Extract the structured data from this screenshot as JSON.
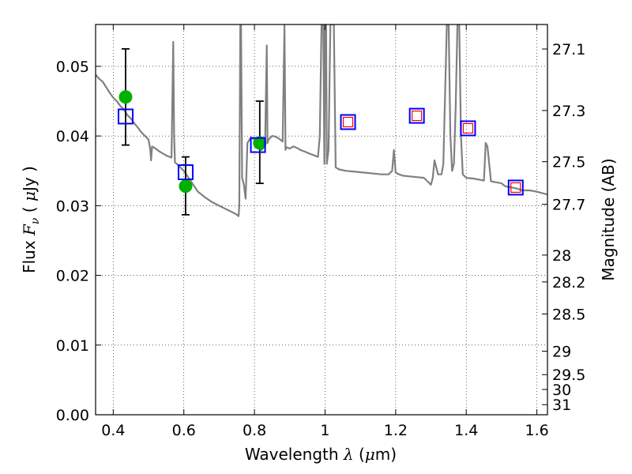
{
  "chart_data": {
    "type": "scatter",
    "title": "",
    "xlabel": "Wavelength",
    "xlabel_symbol": "λ",
    "xlabel_unit_open": "(",
    "xlabel_unit_mu": "μ",
    "xlabel_unit_rest": "m)",
    "ylabel": "Flux",
    "ylabel_symbol": "F",
    "ylabel_subscript": "ν",
    "ylabel_unit_open": "(",
    "ylabel_unit_mu": "μ",
    "ylabel_unit_rest": "Jy )",
    "y2label": "Magnitude (AB)",
    "xlim": [
      0.35,
      1.63
    ],
    "ylim": [
      0.0,
      0.056
    ],
    "x_ticks": [
      0.4,
      0.6,
      0.8,
      1.0,
      1.2,
      1.4,
      1.6
    ],
    "x_tick_labels": [
      "0.4",
      "0.6",
      "0.8",
      "1",
      "1.2",
      "1.4",
      "1.6"
    ],
    "y_ticks": [
      0.0,
      0.01,
      0.02,
      0.03,
      0.04,
      0.05
    ],
    "y_tick_labels": [
      "0.00",
      "0.01",
      "0.02",
      "0.03",
      "0.04",
      "0.05"
    ],
    "y2_ticks": [
      27.1,
      27.3,
      27.5,
      27.7,
      28,
      28.2,
      28.5,
      29,
      29.5,
      30,
      31
    ],
    "y2_tick_labels": [
      "27.1",
      "27.3",
      "27.5",
      "27.7",
      "28",
      "28.2",
      "28.5",
      "29",
      "29.5",
      "30",
      "31"
    ],
    "grid": true,
    "model_spectrum": {
      "color": "#808080",
      "x": [
        0.35,
        0.36,
        0.37,
        0.38,
        0.39,
        0.4,
        0.41,
        0.42,
        0.43,
        0.44,
        0.45,
        0.46,
        0.47,
        0.48,
        0.49,
        0.5,
        0.505,
        0.507,
        0.51,
        0.52,
        0.53,
        0.54,
        0.55,
        0.56,
        0.565,
        0.57,
        0.5725,
        0.575,
        0.58,
        0.59,
        0.6,
        0.62,
        0.64,
        0.66,
        0.68,
        0.7,
        0.72,
        0.74,
        0.75,
        0.755,
        0.757,
        0.76,
        0.762,
        0.765,
        0.77,
        0.775,
        0.78,
        0.79,
        0.8,
        0.81,
        0.82,
        0.83,
        0.835,
        0.837,
        0.84,
        0.85,
        0.86,
        0.87,
        0.88,
        0.885,
        0.888,
        0.89,
        0.9,
        0.91,
        0.92,
        0.93,
        0.94,
        0.95,
        0.96,
        0.97,
        0.98,
        0.985,
        0.99,
        0.995,
        0.998,
        1.0,
        1.003,
        1.005,
        1.01,
        1.015,
        1.02,
        1.025,
        1.03,
        1.04,
        1.06,
        1.08,
        1.1,
        1.12,
        1.14,
        1.16,
        1.18,
        1.19,
        1.195,
        1.2,
        1.205,
        1.21,
        1.22,
        1.24,
        1.26,
        1.28,
        1.29,
        1.3,
        1.305,
        1.31,
        1.32,
        1.33,
        1.335,
        1.34,
        1.345,
        1.35,
        1.355,
        1.36,
        1.365,
        1.37,
        1.375,
        1.38,
        1.385,
        1.39,
        1.4,
        1.42,
        1.44,
        1.45,
        1.455,
        1.46,
        1.47,
        1.48,
        1.49,
        1.5,
        1.51,
        1.52,
        1.53,
        1.54,
        1.56,
        1.58,
        1.6,
        1.63
      ],
      "y": [
        0.0488,
        0.0482,
        0.0478,
        0.047,
        0.0462,
        0.0455,
        0.045,
        0.0443,
        0.0438,
        0.043,
        0.0425,
        0.0418,
        0.0412,
        0.0405,
        0.04,
        0.0395,
        0.038,
        0.0365,
        0.0385,
        0.0382,
        0.0378,
        0.0375,
        0.0372,
        0.037,
        0.0369,
        0.0535,
        0.04,
        0.0362,
        0.036,
        0.0355,
        0.035,
        0.0335,
        0.032,
        0.0312,
        0.0305,
        0.03,
        0.0295,
        0.029,
        0.0287,
        0.0285,
        0.03,
        0.056,
        0.056,
        0.034,
        0.033,
        0.031,
        0.039,
        0.0398,
        0.0395,
        0.0385,
        0.038,
        0.0385,
        0.053,
        0.039,
        0.0395,
        0.04,
        0.0399,
        0.0396,
        0.0392,
        0.056,
        0.038,
        0.0384,
        0.0382,
        0.0385,
        0.0383,
        0.038,
        0.0378,
        0.0376,
        0.0374,
        0.0372,
        0.037,
        0.04,
        0.056,
        0.056,
        0.036,
        0.056,
        0.056,
        0.036,
        0.038,
        0.056,
        0.056,
        0.056,
        0.0355,
        0.0352,
        0.035,
        0.0349,
        0.0348,
        0.0347,
        0.0346,
        0.0345,
        0.0345,
        0.035,
        0.038,
        0.0348,
        0.0346,
        0.0345,
        0.0343,
        0.0342,
        0.0341,
        0.034,
        0.0335,
        0.033,
        0.034,
        0.0365,
        0.0345,
        0.0345,
        0.036,
        0.046,
        0.056,
        0.056,
        0.04,
        0.035,
        0.036,
        0.044,
        0.056,
        0.056,
        0.04,
        0.0345,
        0.034,
        0.0339,
        0.0337,
        0.0336,
        0.039,
        0.0385,
        0.0335,
        0.0334,
        0.0333,
        0.0332,
        0.0328,
        0.0327,
        0.0326,
        0.0325,
        0.0322,
        0.0322,
        0.032,
        0.0316
      ]
    },
    "series": [
      {
        "marker": "circle",
        "color": "#00b000",
        "x": [
          0.435,
          0.605,
          0.815
        ],
        "y": [
          0.0456,
          0.0328,
          0.039
        ],
        "yerr_low": [
          0.0387,
          0.0287,
          0.0332
        ],
        "yerr_high": [
          0.0525,
          0.037,
          0.045
        ]
      },
      {
        "marker": "square",
        "color": "#0000ff",
        "x": [
          0.435,
          0.605,
          0.81,
          1.065,
          1.26,
          1.405,
          1.54
        ],
        "y": [
          0.0428,
          0.0348,
          0.0387,
          0.042,
          0.0429,
          0.0411,
          0.0326
        ]
      },
      {
        "marker": "small-square",
        "color": "#ff0000",
        "x": [
          1.065,
          1.26,
          1.405,
          1.54
        ],
        "y": [
          0.042,
          0.0429,
          0.0411,
          0.0326
        ]
      }
    ]
  }
}
